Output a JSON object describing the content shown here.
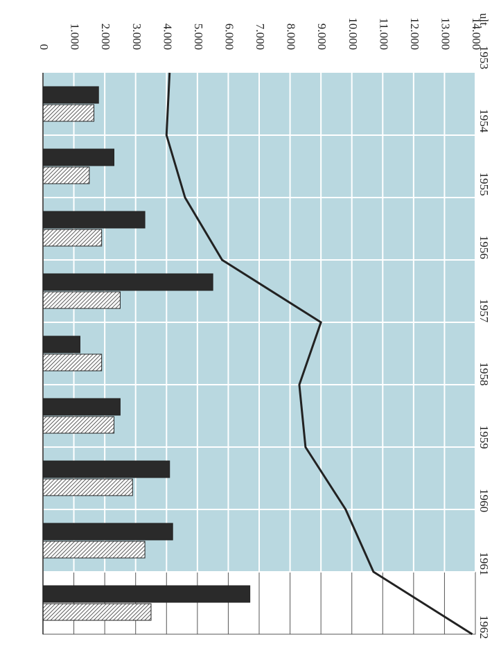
{
  "chart_data": {
    "type": "bar-line",
    "first_label_prefix": "ult.",
    "categories": [
      "1953",
      "1954",
      "1955",
      "1956",
      "1957",
      "1958",
      "1959",
      "1960",
      "1961",
      "1962"
    ],
    "series": [
      {
        "type": "bar",
        "color": "#2a2a2a",
        "values": [
          null,
          1800,
          2300,
          3300,
          5500,
          1200,
          2500,
          4100,
          4200,
          6700
        ]
      },
      {
        "type": "bar",
        "color": "hatched",
        "values": [
          null,
          1650,
          1500,
          1900,
          2500,
          1900,
          2300,
          2900,
          3300,
          3500
        ]
      },
      {
        "type": "line",
        "color": "#222222",
        "values": [
          4100,
          4000,
          4600,
          5800,
          9000,
          8300,
          8500,
          9800,
          10700,
          13900
        ]
      }
    ],
    "xlim": [
      0,
      14000
    ],
    "xticks": [
      0,
      {
        "value": 1000,
        "label": "1.000"
      },
      {
        "value": 2000,
        "label": "2.000"
      },
      {
        "value": 3000,
        "label": "3.000"
      },
      {
        "value": 4000,
        "label": "4.000"
      },
      {
        "value": 5000,
        "label": "5.000"
      },
      {
        "value": 6000,
        "label": "6.000"
      },
      {
        "value": 7000,
        "label": "7.000"
      },
      {
        "value": 8000,
        "label": "8.000"
      },
      {
        "value": 9000,
        "label": "9.000"
      },
      {
        "value": 10000,
        "label": "10.000"
      },
      {
        "value": 11000,
        "label": "11.000"
      },
      {
        "value": 12000,
        "label": "12.000"
      },
      {
        "value": 13000,
        "label": "13.000"
      },
      {
        "value": 14000,
        "label": "14.000"
      }
    ],
    "grid": true
  }
}
